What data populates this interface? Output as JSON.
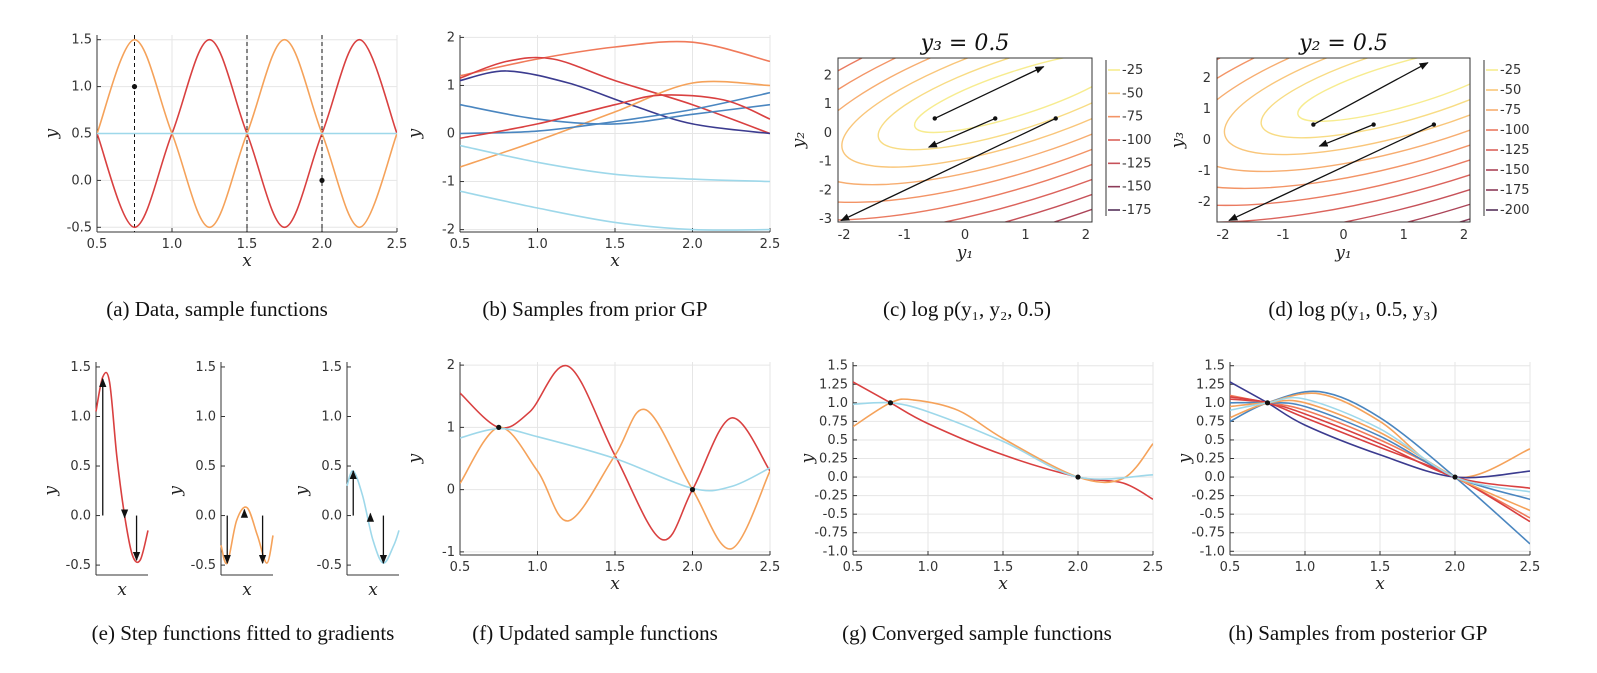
{
  "colors": {
    "red": "#d94040",
    "orange": "#f5a25a",
    "lightblue": "#9ed8ea",
    "blue": "#4a86c0",
    "navy": "#3b3b8f",
    "salmon": "#f07a5a",
    "grid": "#e6e6e6"
  },
  "chart_data": [
    {
      "panel": "a",
      "type": "line",
      "caption": "(a) Data, sample functions",
      "xlabel": "x",
      "ylabel": "y",
      "xlim": [
        0.5,
        2.5
      ],
      "ylim": [
        -0.55,
        1.55
      ],
      "xticks": [
        0.5,
        1.0,
        1.5,
        2.0,
        2.5
      ],
      "xticklabels": [
        "0.5",
        "1.0",
        "1.5",
        "2.0",
        "2.5"
      ],
      "yticks": [
        -0.5,
        0.0,
        0.5,
        1.0,
        1.5
      ],
      "yticklabels": [
        "-0.5",
        "0.0",
        "0.5",
        "1.0",
        "1.5"
      ],
      "grid": true,
      "vlines": [
        0.75,
        1.5,
        2.0
      ],
      "points": [
        {
          "x": 0.75,
          "y": 1.0
        },
        {
          "x": 2.0,
          "y": 0.0
        }
      ],
      "series": [
        {
          "color": "red",
          "x": [
            0.5,
            0.75,
            1.0,
            1.25,
            1.5,
            1.75,
            2.0,
            2.25,
            2.5
          ],
          "y": [
            0.5,
            -0.5,
            0.5,
            1.5,
            0.5,
            -0.5,
            0.5,
            1.5,
            0.5
          ]
        },
        {
          "color": "orange",
          "x": [
            0.5,
            0.75,
            1.0,
            1.25,
            1.5,
            1.75,
            2.0,
            2.25,
            2.5
          ],
          "y": [
            0.5,
            1.5,
            0.5,
            -0.5,
            0.5,
            1.5,
            0.5,
            -0.5,
            0.5
          ]
        },
        {
          "color": "lightblue",
          "x": [
            0.5,
            2.5
          ],
          "y": [
            0.5,
            0.5
          ]
        }
      ]
    },
    {
      "panel": "b",
      "type": "line",
      "caption": "(b) Samples from prior GP",
      "xlabel": "x",
      "ylabel": "y",
      "xlim": [
        0.5,
        2.5
      ],
      "ylim": [
        -2.05,
        2.05
      ],
      "xticks": [
        0.5,
        1.0,
        1.5,
        2.0,
        2.5
      ],
      "xticklabels": [
        "0.5",
        "1.0",
        "1.5",
        "2.0",
        "2.5"
      ],
      "yticks": [
        -2,
        -1,
        0,
        1,
        2
      ],
      "yticklabels": [
        "-2",
        "-1",
        "0",
        "1",
        "2"
      ],
      "grid": true,
      "series": [
        {
          "color": "salmon",
          "x": [
            0.5,
            1.0,
            1.5,
            2.0,
            2.5
          ],
          "y": [
            1.2,
            1.55,
            1.8,
            1.9,
            1.5
          ]
        },
        {
          "color": "red",
          "x": [
            0.5,
            0.8,
            1.1,
            1.5,
            2.0,
            2.5
          ],
          "y": [
            1.15,
            1.5,
            1.55,
            1.1,
            0.6,
            0.0
          ]
        },
        {
          "color": "navy",
          "x": [
            0.5,
            0.8,
            1.2,
            1.6,
            2.0,
            2.5
          ],
          "y": [
            1.1,
            1.3,
            1.05,
            0.6,
            0.2,
            0.0
          ]
        },
        {
          "color": "orange",
          "x": [
            0.5,
            1.0,
            1.5,
            2.0,
            2.5
          ],
          "y": [
            -0.7,
            -0.15,
            0.45,
            1.05,
            1.0
          ]
        },
        {
          "color": "blue",
          "x": [
            0.5,
            1.0,
            1.5,
            2.0,
            2.5
          ],
          "y": [
            0.6,
            0.3,
            0.2,
            0.4,
            0.6
          ]
        },
        {
          "color": "blue",
          "x": [
            0.5,
            1.0,
            1.5,
            2.0,
            2.5
          ],
          "y": [
            0.0,
            0.05,
            0.25,
            0.5,
            0.85
          ]
        },
        {
          "color": "red",
          "x": [
            0.5,
            1.0,
            1.5,
            1.8,
            2.2,
            2.5
          ],
          "y": [
            -0.1,
            0.2,
            0.6,
            0.8,
            0.7,
            0.3
          ]
        },
        {
          "color": "lightblue",
          "x": [
            0.5,
            1.0,
            1.5,
            2.0,
            2.5
          ],
          "y": [
            -0.25,
            -0.6,
            -0.85,
            -0.95,
            -1.0
          ]
        },
        {
          "color": "lightblue",
          "x": [
            0.5,
            1.0,
            1.5,
            2.0,
            2.5
          ],
          "y": [
            -1.2,
            -1.55,
            -1.85,
            -2.0,
            -2.0
          ]
        }
      ]
    },
    {
      "panel": "c",
      "type": "contour",
      "caption": "(c) log p(y₁, y₂, 0.5)",
      "title": "y₃ = 0.5",
      "xlabel": "y₁",
      "ylabel": "y₂",
      "xlim": [
        -2.1,
        2.1
      ],
      "ylim": [
        -3.1,
        2.6
      ],
      "xticks": [
        -2,
        -1,
        0,
        1,
        2
      ],
      "xticklabels": [
        "-2",
        "-1",
        "0",
        "1",
        "2"
      ],
      "yticks": [
        -3,
        -2,
        -1,
        0,
        1,
        2
      ],
      "yticklabels": [
        "-3",
        "-2",
        "-1",
        "0",
        "1",
        "2"
      ],
      "colorbar": {
        "ticks": [
          -25,
          -50,
          -75,
          -100,
          -125,
          -150,
          -175
        ],
        "ticklabels": [
          "-25",
          "-50",
          "-75",
          "-100",
          "-125",
          "-150",
          "-175"
        ]
      },
      "arrows": [
        {
          "from": [
            -0.5,
            0.5
          ],
          "to": [
            1.3,
            2.3
          ]
        },
        {
          "from": [
            0.5,
            0.5
          ],
          "to": [
            -0.6,
            -0.5
          ]
        },
        {
          "from": [
            1.5,
            0.5
          ],
          "to": [
            -2.05,
            -3.05
          ]
        }
      ]
    },
    {
      "panel": "d",
      "type": "contour",
      "caption": "(d) log p(y₁, 0.5, y₃)",
      "title": "y₂ = 0.5",
      "xlabel": "y₁",
      "ylabel": "y₃",
      "xlim": [
        -2.1,
        2.1
      ],
      "ylim": [
        -2.65,
        2.65
      ],
      "xticks": [
        -2,
        -1,
        0,
        1,
        2
      ],
      "xticklabels": [
        "-2",
        "-1",
        "0",
        "1",
        "2"
      ],
      "yticks": [
        -2,
        -1,
        0,
        1,
        2
      ],
      "yticklabels": [
        "-2",
        "-1",
        "0",
        "1",
        "2"
      ],
      "colorbar": {
        "ticks": [
          -25,
          -50,
          -75,
          -100,
          -125,
          -150,
          -175,
          -200
        ],
        "ticklabels": [
          "-25",
          "-50",
          "-75",
          "-100",
          "-125",
          "-150",
          "-175",
          "-200"
        ]
      },
      "arrows": [
        {
          "from": [
            -0.5,
            0.5
          ],
          "to": [
            1.4,
            2.5
          ]
        },
        {
          "from": [
            0.5,
            0.5
          ],
          "to": [
            -0.4,
            -0.2
          ]
        },
        {
          "from": [
            1.5,
            0.5
          ],
          "to": [
            -1.9,
            -2.6
          ]
        }
      ]
    },
    {
      "panel": "e",
      "type": "line",
      "caption": "(e) Step functions fitted to gradients",
      "subplots": [
        {
          "xlabel": "x",
          "ylabel": "y",
          "color": "red",
          "ylim": [
            -0.6,
            1.55
          ],
          "yticks": [
            -0.5,
            0.0,
            0.5,
            1.0,
            1.5
          ],
          "yticklabels": [
            "-0.5",
            "0.0",
            "0.5",
            "1.0",
            "1.5"
          ],
          "x": [
            0.5,
            0.63,
            0.76,
            0.9,
            1.05,
            1.2,
            1.35,
            1.5
          ],
          "y": [
            1.05,
            1.4,
            1.35,
            0.6,
            0.0,
            -0.4,
            -0.45,
            -0.15
          ],
          "arrows": [
            {
              "x": 0.63,
              "from": 0.0,
              "to": 1.38
            },
            {
              "x": 1.05,
              "from": 0.02,
              "to": -0.02
            },
            {
              "x": 1.28,
              "from": 0.0,
              "to": -0.45
            }
          ]
        },
        {
          "xlabel": "x",
          "ylabel": "y",
          "color": "orange",
          "ylim": [
            -0.6,
            1.55
          ],
          "yticks": [
            -0.5,
            0.0,
            0.5,
            1.0,
            1.5
          ],
          "yticklabels": [
            "-0.5",
            "0.0",
            "0.5",
            "1.0",
            "1.5"
          ],
          "x": [
            0.5,
            0.62,
            0.8,
            1.0,
            1.2,
            1.38,
            1.5
          ],
          "y": [
            -0.3,
            -0.48,
            -0.05,
            0.08,
            -0.2,
            -0.48,
            -0.2
          ],
          "arrows": [
            {
              "x": 0.62,
              "from": 0.0,
              "to": -0.48
            },
            {
              "x": 0.95,
              "from": 0.0,
              "to": 0.06
            },
            {
              "x": 1.3,
              "from": 0.0,
              "to": -0.48
            }
          ]
        },
        {
          "xlabel": "x",
          "ylabel": "y",
          "color": "lightblue",
          "ylim": [
            -0.6,
            1.55
          ],
          "yticks": [
            -0.5,
            0.0,
            0.5,
            1.0,
            1.5
          ],
          "yticklabels": [
            "-0.5",
            "0.0",
            "0.5",
            "1.0",
            "1.5"
          ],
          "x": [
            0.5,
            0.62,
            0.8,
            1.0,
            1.2,
            1.4,
            1.5
          ],
          "y": [
            0.3,
            0.45,
            0.2,
            -0.25,
            -0.48,
            -0.3,
            -0.15
          ],
          "arrows": [
            {
              "x": 0.62,
              "from": 0.0,
              "to": 0.45
            },
            {
              "x": 0.95,
              "from": 0.0,
              "to": 0.02
            },
            {
              "x": 1.2,
              "from": 0.0,
              "to": -0.48
            }
          ]
        }
      ]
    },
    {
      "panel": "f",
      "type": "line",
      "caption": "(f) Updated sample functions",
      "xlabel": "x",
      "ylabel": "y",
      "xlim": [
        0.5,
        2.5
      ],
      "ylim": [
        -1.05,
        2.05
      ],
      "xticks": [
        0.5,
        1.0,
        1.5,
        2.0,
        2.5
      ],
      "xticklabels": [
        "0.5",
        "1.0",
        "1.5",
        "2.0",
        "2.5"
      ],
      "yticks": [
        -1,
        0,
        1,
        2
      ],
      "yticklabels": [
        "-1",
        "0",
        "1",
        "2"
      ],
      "grid": true,
      "points": [
        {
          "x": 0.75,
          "y": 1.0
        },
        {
          "x": 2.0,
          "y": 0.0
        }
      ],
      "series": [
        {
          "color": "red",
          "x": [
            0.5,
            0.75,
            0.95,
            1.2,
            1.5,
            1.8,
            2.0,
            2.25,
            2.5
          ],
          "y": [
            1.55,
            1.0,
            1.25,
            1.98,
            0.55,
            -0.8,
            0.0,
            1.15,
            0.3
          ]
        },
        {
          "color": "orange",
          "x": [
            0.5,
            0.75,
            1.0,
            1.2,
            1.5,
            1.7,
            2.0,
            2.25,
            2.5
          ],
          "y": [
            0.1,
            1.0,
            0.3,
            -0.5,
            0.55,
            1.28,
            0.0,
            -0.95,
            0.3
          ]
        },
        {
          "color": "lightblue",
          "x": [
            0.5,
            0.75,
            1.0,
            1.5,
            2.0,
            2.25,
            2.5
          ],
          "y": [
            0.83,
            0.98,
            0.85,
            0.5,
            0.02,
            0.05,
            0.35
          ]
        }
      ]
    },
    {
      "panel": "g",
      "type": "line",
      "caption": "(g) Converged sample functions",
      "xlabel": "x",
      "ylabel": "y",
      "xlim": [
        0.5,
        2.5
      ],
      "ylim": [
        -1.05,
        1.55
      ],
      "xticks": [
        0.5,
        1.0,
        1.5,
        2.0,
        2.5
      ],
      "xticklabels": [
        "0.5",
        "1.0",
        "1.5",
        "2.0",
        "2.5"
      ],
      "yticks": [
        -1.0,
        -0.75,
        -0.5,
        -0.25,
        0.0,
        0.25,
        0.5,
        0.75,
        1.0,
        1.25,
        1.5
      ],
      "yticklabels": [
        "-1.0",
        "-0.75",
        "-0.5",
        "-0.25",
        "0.0",
        "0.25",
        "0.5",
        "0.75",
        "1.0",
        "1.25",
        "1.5"
      ],
      "grid": true,
      "points": [
        {
          "x": 0.75,
          "y": 1.0
        },
        {
          "x": 2.0,
          "y": 0.0
        }
      ],
      "series": [
        {
          "color": "red",
          "x": [
            0.5,
            0.75,
            1.0,
            1.5,
            2.0,
            2.3,
            2.5
          ],
          "y": [
            1.28,
            1.0,
            0.72,
            0.3,
            0.0,
            -0.08,
            -0.3
          ]
        },
        {
          "color": "orange",
          "x": [
            0.5,
            0.75,
            0.9,
            1.2,
            1.5,
            2.0,
            2.3,
            2.5
          ],
          "y": [
            0.68,
            1.0,
            1.04,
            0.9,
            0.52,
            0.0,
            -0.02,
            0.45
          ]
        },
        {
          "color": "lightblue",
          "x": [
            0.5,
            0.75,
            1.0,
            1.5,
            2.0,
            2.5
          ],
          "y": [
            0.98,
            1.0,
            0.88,
            0.48,
            0.0,
            0.03
          ]
        }
      ]
    },
    {
      "panel": "h",
      "type": "line",
      "caption": "(h) Samples from posterior GP",
      "xlabel": "x",
      "ylabel": "y",
      "xlim": [
        0.5,
        2.5
      ],
      "ylim": [
        -1.05,
        1.55
      ],
      "xticks": [
        0.5,
        1.0,
        1.5,
        2.0,
        2.5
      ],
      "xticklabels": [
        "0.5",
        "1.0",
        "1.5",
        "2.0",
        "2.5"
      ],
      "yticks": [
        -1.0,
        -0.75,
        -0.5,
        -0.25,
        0.0,
        0.25,
        0.5,
        0.75,
        1.0,
        1.25,
        1.5
      ],
      "yticklabels": [
        "-1.0",
        "-0.75",
        "-0.5",
        "-0.25",
        "0.0",
        "0.25",
        "0.5",
        "0.75",
        "1.0",
        "1.25",
        "1.5"
      ],
      "grid": true,
      "points": [
        {
          "x": 0.75,
          "y": 1.0
        },
        {
          "x": 2.0,
          "y": 0.0
        }
      ],
      "series": [
        {
          "color": "blue",
          "x": [
            0.5,
            0.75,
            1.1,
            1.5,
            2.0,
            2.5
          ],
          "y": [
            0.75,
            1.0,
            1.15,
            0.8,
            0.0,
            -0.9
          ]
        },
        {
          "color": "orange",
          "x": [
            0.5,
            0.75,
            1.1,
            1.5,
            2.0,
            2.5
          ],
          "y": [
            0.8,
            1.0,
            1.12,
            0.75,
            0.0,
            0.38
          ]
        },
        {
          "color": "navy",
          "x": [
            0.5,
            0.75,
            1.0,
            1.5,
            2.0,
            2.5
          ],
          "y": [
            1.28,
            1.0,
            0.7,
            0.3,
            0.0,
            0.08
          ]
        },
        {
          "color": "red",
          "x": [
            0.5,
            0.75,
            1.0,
            1.5,
            2.0,
            2.5
          ],
          "y": [
            1.05,
            1.0,
            0.85,
            0.45,
            0.0,
            -0.15
          ]
        },
        {
          "color": "salmon",
          "x": [
            0.5,
            0.75,
            1.0,
            1.5,
            2.0,
            2.5
          ],
          "y": [
            1.1,
            1.0,
            0.9,
            0.5,
            0.0,
            -0.55
          ]
        },
        {
          "color": "blue",
          "x": [
            0.5,
            0.75,
            1.0,
            1.5,
            2.0,
            2.5
          ],
          "y": [
            1.0,
            1.0,
            0.95,
            0.55,
            0.0,
            -0.3
          ]
        },
        {
          "color": "red",
          "x": [
            0.5,
            0.75,
            1.0,
            1.5,
            2.0,
            2.5
          ],
          "y": [
            1.08,
            1.0,
            0.8,
            0.4,
            0.0,
            -0.6
          ]
        },
        {
          "color": "orange",
          "x": [
            0.5,
            0.75,
            1.0,
            1.5,
            2.0,
            2.5
          ],
          "y": [
            0.95,
            1.0,
            1.0,
            0.6,
            0.0,
            -0.45
          ]
        },
        {
          "color": "lightblue",
          "x": [
            0.5,
            0.75,
            1.0,
            1.5,
            2.0,
            2.5
          ],
          "y": [
            0.9,
            1.0,
            1.05,
            0.65,
            0.0,
            -0.2
          ]
        }
      ]
    }
  ]
}
